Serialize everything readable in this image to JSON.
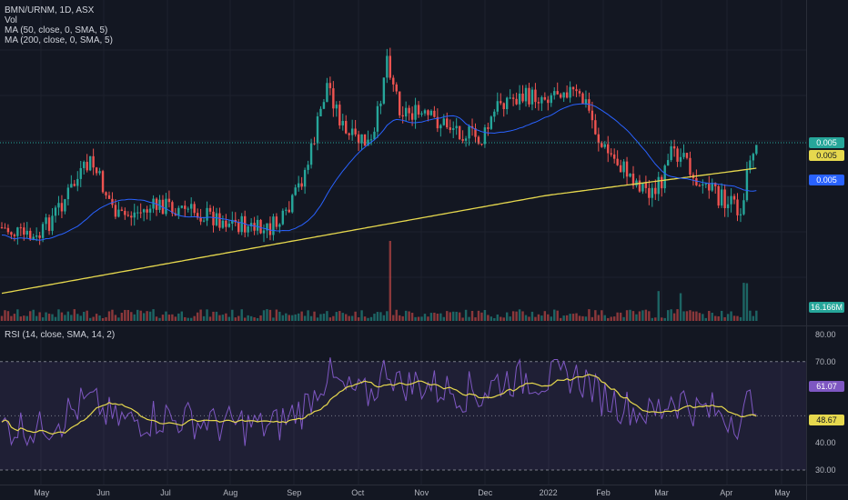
{
  "header": {
    "symbol_line": "BMN/URNM, 1D, ASX",
    "vol_label": "Vol",
    "ma50_label": "MA (50, close, 0, SMA, 5)",
    "ma200_label": "MA (200, close, 0, SMA, 5)"
  },
  "rsi_panel": {
    "label": "RSI (14, close, SMA, 14, 2)",
    "rsi_value": "61.07",
    "rsi_ma_value": "48.67",
    "y_ticks": [
      "80.00",
      "70.00",
      "40.00",
      "30.00"
    ]
  },
  "price_tags": {
    "last_price": "0.005",
    "ma200_value": "0.005",
    "ma50_value": "0.005",
    "volume_value": "16.166M"
  },
  "colors": {
    "background": "#131722",
    "up": "#26a69a",
    "down": "#ef5350",
    "ma50": "#2962ff",
    "ma200": "#e6d84e",
    "rsi": "#7e57c2",
    "rsi_ma": "#e6d84e",
    "rsi_band": "#7e57c2"
  },
  "chart_data": {
    "type": "candlestick",
    "x_ticks": [
      "May",
      "Jun",
      "Jul",
      "Aug",
      "Sep",
      "Oct",
      "Nov",
      "Dec",
      "2022",
      "Feb",
      "Mar",
      "Apr",
      "May"
    ],
    "indicators": [
      "Vol",
      "MA 50",
      "MA 200",
      "RSI 14"
    ],
    "rsi_levels": [
      70,
      30
    ]
  }
}
